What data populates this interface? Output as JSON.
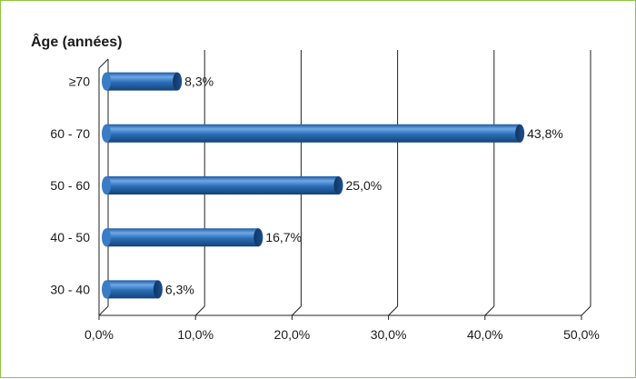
{
  "chart_data": {
    "type": "bar",
    "orientation": "horizontal",
    "title": "Âge (années)",
    "categories": [
      "≥70",
      "60 - 70",
      "50 - 60",
      "40 - 50",
      "30 - 40"
    ],
    "values": [
      8.3,
      43.8,
      25.0,
      16.7,
      6.3
    ],
    "value_labels": [
      "8,3%",
      "43,8%",
      "25,0%",
      "16,7%",
      "6,3%"
    ],
    "xlim": [
      0,
      50
    ],
    "xticks": [
      0,
      10,
      20,
      30,
      40,
      50
    ],
    "xtick_labels": [
      "0,0%",
      "10,0%",
      "20,0%",
      "30,0%",
      "40,0%",
      "50,0%"
    ],
    "xlabel": "",
    "ylabel": "",
    "grid": true,
    "legend": false,
    "colors": {
      "bar": "#2a6db5",
      "bar_light": "#6fa8e6",
      "bar_dark": "#14427a",
      "border": "#8cc63f"
    }
  }
}
